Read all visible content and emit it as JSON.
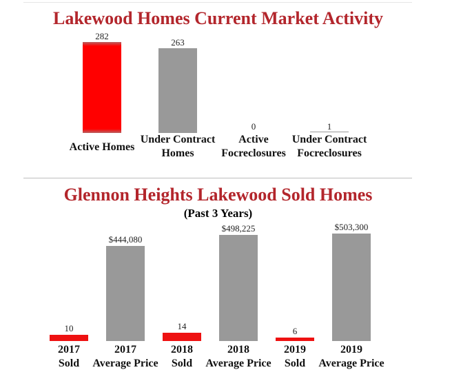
{
  "chart_data": [
    {
      "type": "bar",
      "title": "Lakewood Homes Current Market Activity",
      "categories": [
        [
          "Active Homes"
        ],
        [
          "Under Contract",
          "Homes"
        ],
        [
          "Active",
          "Focreclosures"
        ],
        [
          "Under Contract",
          "Focreclosures"
        ]
      ],
      "values": [
        282,
        263,
        0,
        1
      ],
      "labels": [
        "282",
        "263",
        "0",
        "1"
      ],
      "colors": [
        "#ff0000",
        "#999999",
        "#999999",
        "#999999"
      ],
      "ylim": [
        0,
        282
      ]
    },
    {
      "type": "bar",
      "title": "Glennon Heights Lakewood Sold Homes",
      "subtitle": "(Past 3 Years)",
      "categories": [
        [
          "2017",
          "Sold"
        ],
        [
          "2017",
          "Average Price"
        ],
        [
          "2018",
          "Sold"
        ],
        [
          "2018",
          "Average Price"
        ],
        [
          "2019",
          "Sold"
        ],
        [
          "2019",
          "Average Price"
        ]
      ],
      "series": [
        {
          "name": "Sold",
          "values": [
            10,
            null,
            14,
            null,
            6,
            null
          ],
          "color": "#ee1111"
        },
        {
          "name": "Average Price",
          "values": [
            null,
            444080,
            null,
            498225,
            null,
            503300
          ],
          "color": "#999999"
        }
      ],
      "labels": [
        "10",
        "$444,080",
        "14",
        "$498,225",
        "6",
        "$503,300"
      ]
    }
  ]
}
